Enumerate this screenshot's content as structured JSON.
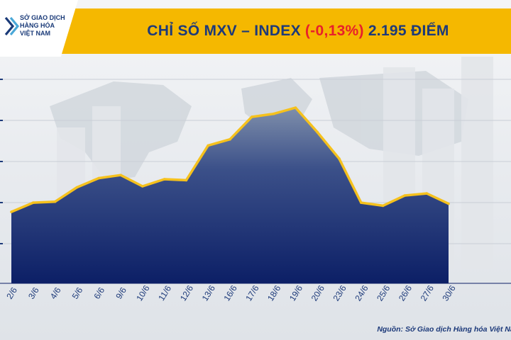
{
  "header": {
    "title_prefix": "CHỈ SỐ MXV – INDEX",
    "title_change": "(-0,13%)",
    "title_suffix": "2.195 ĐIỂM",
    "logo_lines": [
      "SỞ GIAO DỊCH",
      "HÀNG HÓA",
      "VIỆT NAM"
    ]
  },
  "source": "Nguồn: Sở Giao dịch Hàng hóa Việt Nam",
  "colors": {
    "banner": "#f5b800",
    "title": "#1d3a7a",
    "negative": "#e8202a",
    "line": "#f5c11d",
    "fill_top": "#7f8fab",
    "fill_bottom": "#0c1f66"
  },
  "chart_data": {
    "type": "area",
    "title": "CHỈ SỐ MXV – INDEX (-0,13%) 2.195 ĐIỂM",
    "xlabel": "",
    "ylabel": "",
    "ylim": [
      0,
      12
    ],
    "grid": true,
    "categories": [
      "2/6",
      "3/6",
      "4/6",
      "5/6",
      "6/6",
      "9/6",
      "10/6",
      "11/6",
      "12/6",
      "13/6",
      "16/6",
      "17/6",
      "18/6",
      "19/6",
      "20/6",
      "23/6",
      "24/6",
      "25/6",
      "26/6",
      "27/6",
      "30/6"
    ],
    "series": [
      {
        "name": "MXV-Index",
        "values": [
          3.5,
          3.95,
          4.0,
          4.7,
          5.15,
          5.3,
          4.75,
          5.1,
          5.05,
          6.75,
          7.05,
          8.15,
          8.3,
          8.6,
          7.4,
          6.1,
          3.95,
          3.8,
          4.3,
          4.4,
          3.9
        ]
      }
    ]
  }
}
